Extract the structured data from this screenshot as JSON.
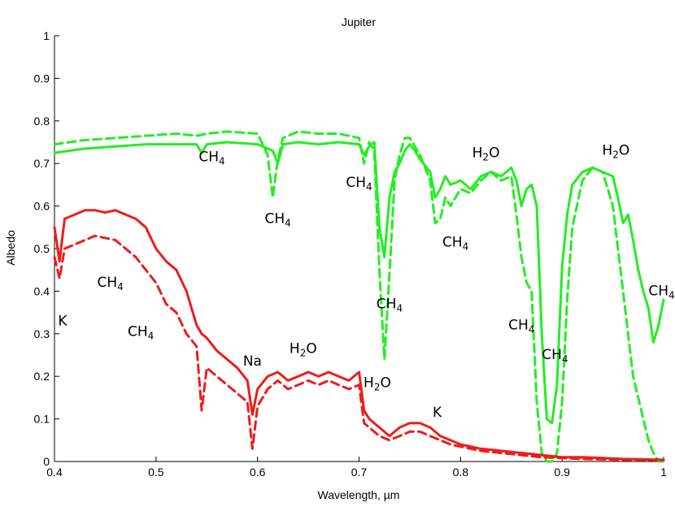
{
  "chart_data": {
    "type": "line",
    "title": "Jupiter",
    "xlabel": "Wavelength, µm",
    "ylabel": "Albedo",
    "xlim": [
      0.4,
      1.0
    ],
    "ylim": [
      0,
      1
    ],
    "xticks": [
      "0.4",
      "0.5",
      "0.6",
      "0.7",
      "0.8",
      "0.9",
      "1"
    ],
    "yticks": [
      "0",
      "0.1",
      "0.2",
      "0.3",
      "0.4",
      "0.5",
      "0.6",
      "0.7",
      "0.8",
      "0.9",
      "1"
    ],
    "grid": false,
    "series": [
      {
        "color": "#22ee22",
        "style": "solid",
        "x": [
          0.4,
          0.43,
          0.46,
          0.49,
          0.52,
          0.54,
          0.545,
          0.55,
          0.57,
          0.6,
          0.615,
          0.62,
          0.625,
          0.64,
          0.66,
          0.68,
          0.7,
          0.705,
          0.71,
          0.715,
          0.72,
          0.725,
          0.73,
          0.735,
          0.74,
          0.745,
          0.75,
          0.755,
          0.76,
          0.77,
          0.775,
          0.78,
          0.785,
          0.79,
          0.8,
          0.81,
          0.82,
          0.83,
          0.84,
          0.85,
          0.855,
          0.86,
          0.865,
          0.87,
          0.875,
          0.88,
          0.885,
          0.89,
          0.895,
          0.9,
          0.905,
          0.91,
          0.92,
          0.93,
          0.94,
          0.95,
          0.955,
          0.96,
          0.965,
          0.97,
          0.975,
          0.98,
          0.985,
          0.99,
          0.995,
          1.0
        ],
        "y": [
          0.725,
          0.735,
          0.74,
          0.745,
          0.745,
          0.745,
          0.725,
          0.745,
          0.75,
          0.745,
          0.73,
          0.7,
          0.745,
          0.75,
          0.745,
          0.75,
          0.745,
          0.72,
          0.74,
          0.75,
          0.55,
          0.48,
          0.62,
          0.68,
          0.7,
          0.73,
          0.745,
          0.73,
          0.71,
          0.68,
          0.62,
          0.64,
          0.67,
          0.65,
          0.66,
          0.64,
          0.67,
          0.68,
          0.67,
          0.69,
          0.66,
          0.6,
          0.64,
          0.65,
          0.6,
          0.3,
          0.1,
          0.09,
          0.18,
          0.46,
          0.58,
          0.65,
          0.68,
          0.69,
          0.68,
          0.67,
          0.62,
          0.56,
          0.58,
          0.52,
          0.45,
          0.4,
          0.36,
          0.28,
          0.32,
          0.38
        ]
      },
      {
        "color": "#22ee22",
        "style": "dashed",
        "x": [
          0.4,
          0.43,
          0.46,
          0.49,
          0.52,
          0.54,
          0.55,
          0.57,
          0.6,
          0.61,
          0.615,
          0.62,
          0.625,
          0.64,
          0.66,
          0.68,
          0.7,
          0.705,
          0.71,
          0.715,
          0.72,
          0.725,
          0.73,
          0.735,
          0.74,
          0.745,
          0.75,
          0.755,
          0.76,
          0.77,
          0.775,
          0.78,
          0.785,
          0.79,
          0.8,
          0.81,
          0.82,
          0.83,
          0.84,
          0.85,
          0.855,
          0.86,
          0.865,
          0.87,
          0.875,
          0.88,
          0.885,
          0.89,
          0.895,
          0.9,
          0.905,
          0.91,
          0.92,
          0.93,
          0.94,
          0.95,
          0.955,
          0.96,
          0.965,
          0.97,
          0.975,
          0.98,
          0.985,
          0.99,
          0.995,
          1.0
        ],
        "y": [
          0.745,
          0.755,
          0.76,
          0.765,
          0.77,
          0.765,
          0.77,
          0.775,
          0.77,
          0.72,
          0.62,
          0.71,
          0.76,
          0.775,
          0.77,
          0.77,
          0.76,
          0.7,
          0.75,
          0.73,
          0.45,
          0.24,
          0.44,
          0.66,
          0.72,
          0.76,
          0.76,
          0.74,
          0.72,
          0.66,
          0.56,
          0.57,
          0.62,
          0.6,
          0.64,
          0.63,
          0.66,
          0.68,
          0.66,
          0.67,
          0.58,
          0.48,
          0.42,
          0.4,
          0.14,
          0.02,
          0.0,
          0.0,
          0.02,
          0.14,
          0.38,
          0.55,
          0.66,
          0.69,
          0.68,
          0.6,
          0.5,
          0.4,
          0.3,
          0.2,
          0.15,
          0.1,
          0.05,
          0.02,
          0.0,
          0.0
        ]
      },
      {
        "color": "#ee1c1c",
        "style": "solid",
        "x": [
          0.4,
          0.405,
          0.41,
          0.42,
          0.43,
          0.44,
          0.45,
          0.46,
          0.47,
          0.48,
          0.49,
          0.5,
          0.51,
          0.52,
          0.53,
          0.54,
          0.545,
          0.55,
          0.56,
          0.57,
          0.58,
          0.59,
          0.595,
          0.6,
          0.61,
          0.62,
          0.63,
          0.64,
          0.65,
          0.66,
          0.67,
          0.68,
          0.69,
          0.7,
          0.705,
          0.71,
          0.72,
          0.73,
          0.74,
          0.75,
          0.76,
          0.77,
          0.78,
          0.79,
          0.8,
          0.82,
          0.84,
          0.86,
          0.88,
          0.9,
          0.92,
          0.94,
          0.96,
          0.98,
          1.0
        ],
        "y": [
          0.55,
          0.47,
          0.57,
          0.58,
          0.59,
          0.59,
          0.585,
          0.59,
          0.58,
          0.57,
          0.55,
          0.5,
          0.47,
          0.45,
          0.4,
          0.32,
          0.3,
          0.29,
          0.26,
          0.24,
          0.22,
          0.19,
          0.11,
          0.17,
          0.2,
          0.21,
          0.19,
          0.2,
          0.21,
          0.2,
          0.21,
          0.2,
          0.19,
          0.21,
          0.12,
          0.1,
          0.08,
          0.06,
          0.08,
          0.09,
          0.09,
          0.08,
          0.06,
          0.05,
          0.04,
          0.03,
          0.025,
          0.02,
          0.015,
          0.01,
          0.01,
          0.008,
          0.006,
          0.005,
          0.004
        ]
      },
      {
        "color": "#ee1c1c",
        "style": "dashed",
        "x": [
          0.4,
          0.405,
          0.41,
          0.42,
          0.43,
          0.44,
          0.45,
          0.46,
          0.47,
          0.48,
          0.49,
          0.5,
          0.51,
          0.52,
          0.53,
          0.54,
          0.545,
          0.55,
          0.56,
          0.57,
          0.58,
          0.59,
          0.595,
          0.6,
          0.61,
          0.62,
          0.63,
          0.64,
          0.65,
          0.66,
          0.67,
          0.68,
          0.69,
          0.7,
          0.705,
          0.71,
          0.72,
          0.73,
          0.74,
          0.75,
          0.76,
          0.77,
          0.78,
          0.79,
          0.8,
          0.82,
          0.84,
          0.86,
          0.88,
          0.9,
          0.92,
          0.94,
          0.96,
          0.98,
          1.0
        ],
        "y": [
          0.48,
          0.43,
          0.5,
          0.51,
          0.52,
          0.53,
          0.525,
          0.52,
          0.5,
          0.48,
          0.45,
          0.42,
          0.37,
          0.35,
          0.3,
          0.27,
          0.12,
          0.22,
          0.2,
          0.18,
          0.16,
          0.14,
          0.03,
          0.13,
          0.17,
          0.19,
          0.17,
          0.18,
          0.19,
          0.18,
          0.19,
          0.18,
          0.17,
          0.18,
          0.09,
          0.08,
          0.06,
          0.05,
          0.06,
          0.07,
          0.07,
          0.06,
          0.05,
          0.04,
          0.035,
          0.025,
          0.02,
          0.015,
          0.01,
          0.008,
          0.006,
          0.005,
          0.004,
          0.004,
          0.003
        ]
      }
    ],
    "annotations": [
      {
        "base": "CH",
        "sub": "4",
        "x": 0.555,
        "y": 0.705
      },
      {
        "base": "CH",
        "sub": "4",
        "x": 0.62,
        "y": 0.56
      },
      {
        "base": "CH",
        "sub": "4",
        "x": 0.7,
        "y": 0.645
      },
      {
        "base": "H",
        "sub": "2",
        "tail": "O",
        "x": 0.825,
        "y": 0.715
      },
      {
        "base": "H",
        "sub": "2",
        "tail": "O",
        "x": 0.953,
        "y": 0.72
      },
      {
        "base": "CH",
        "sub": "4",
        "x": 0.795,
        "y": 0.505
      },
      {
        "base": "CH",
        "sub": "4",
        "x": 0.73,
        "y": 0.36
      },
      {
        "base": "CH",
        "sub": "4",
        "x": 0.86,
        "y": 0.31
      },
      {
        "base": "CH",
        "sub": "4",
        "x": 0.893,
        "y": 0.24
      },
      {
        "base": "CH",
        "sub": "4",
        "x": 0.998,
        "y": 0.39
      },
      {
        "base": "CH",
        "sub": "4",
        "x": 0.455,
        "y": 0.41
      },
      {
        "base": "CH",
        "sub": "4",
        "x": 0.485,
        "y": 0.295
      },
      {
        "base": "K",
        "sub": "",
        "x": 0.408,
        "y": 0.32
      },
      {
        "base": "Na",
        "sub": "",
        "x": 0.595,
        "y": 0.225
      },
      {
        "base": "H",
        "sub": "2",
        "tail": "O",
        "x": 0.645,
        "y": 0.255
      },
      {
        "base": "H",
        "sub": "2",
        "tail": "O",
        "x": 0.718,
        "y": 0.175
      },
      {
        "base": "K",
        "sub": "",
        "x": 0.777,
        "y": 0.105
      }
    ]
  }
}
